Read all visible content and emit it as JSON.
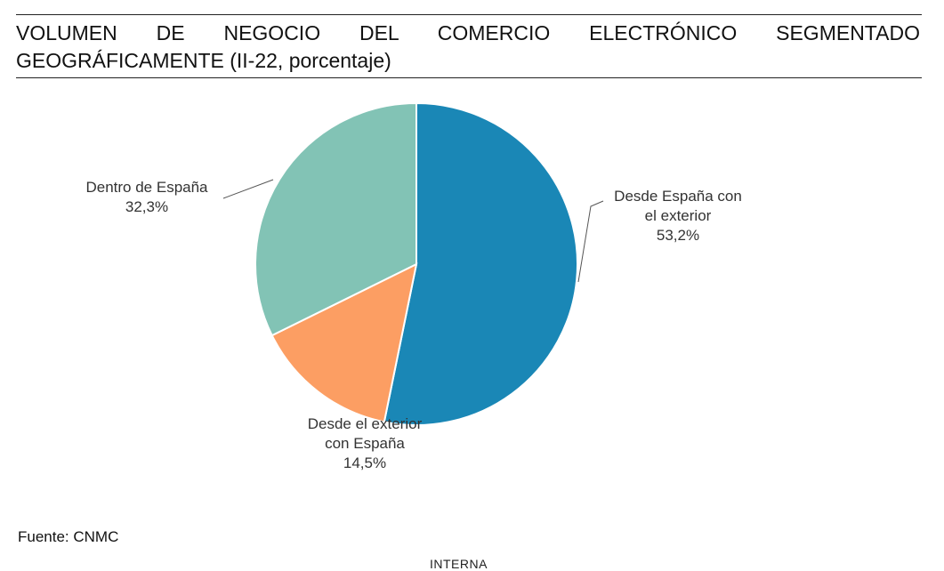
{
  "header": {
    "title": "VOLUMEN DE NEGOCIO DEL COMERCIO ELECTRÓNICO SEGMENTADO GEOGRÁFICAMENTE (II-22, porcentaje)"
  },
  "chart_data": {
    "type": "pie",
    "slices": [
      {
        "label_lines": [
          "Desde España con",
          "el exterior"
        ],
        "value_text": "53,2%",
        "value": 53.2,
        "color": "#1a87b6"
      },
      {
        "label_lines": [
          "Desde el exterior",
          "con España"
        ],
        "value_text": "14,5%",
        "value": 14.5,
        "color": "#fc9e63"
      },
      {
        "label_lines": [
          "Dentro de España"
        ],
        "value_text": "32,3%",
        "value": 32.3,
        "color": "#82c3b5"
      }
    ],
    "start_angle_deg": 0,
    "direction": "clockwise",
    "legend": "none"
  },
  "footer": {
    "source": "Fuente: CNMC",
    "classification": "INTERNA"
  }
}
